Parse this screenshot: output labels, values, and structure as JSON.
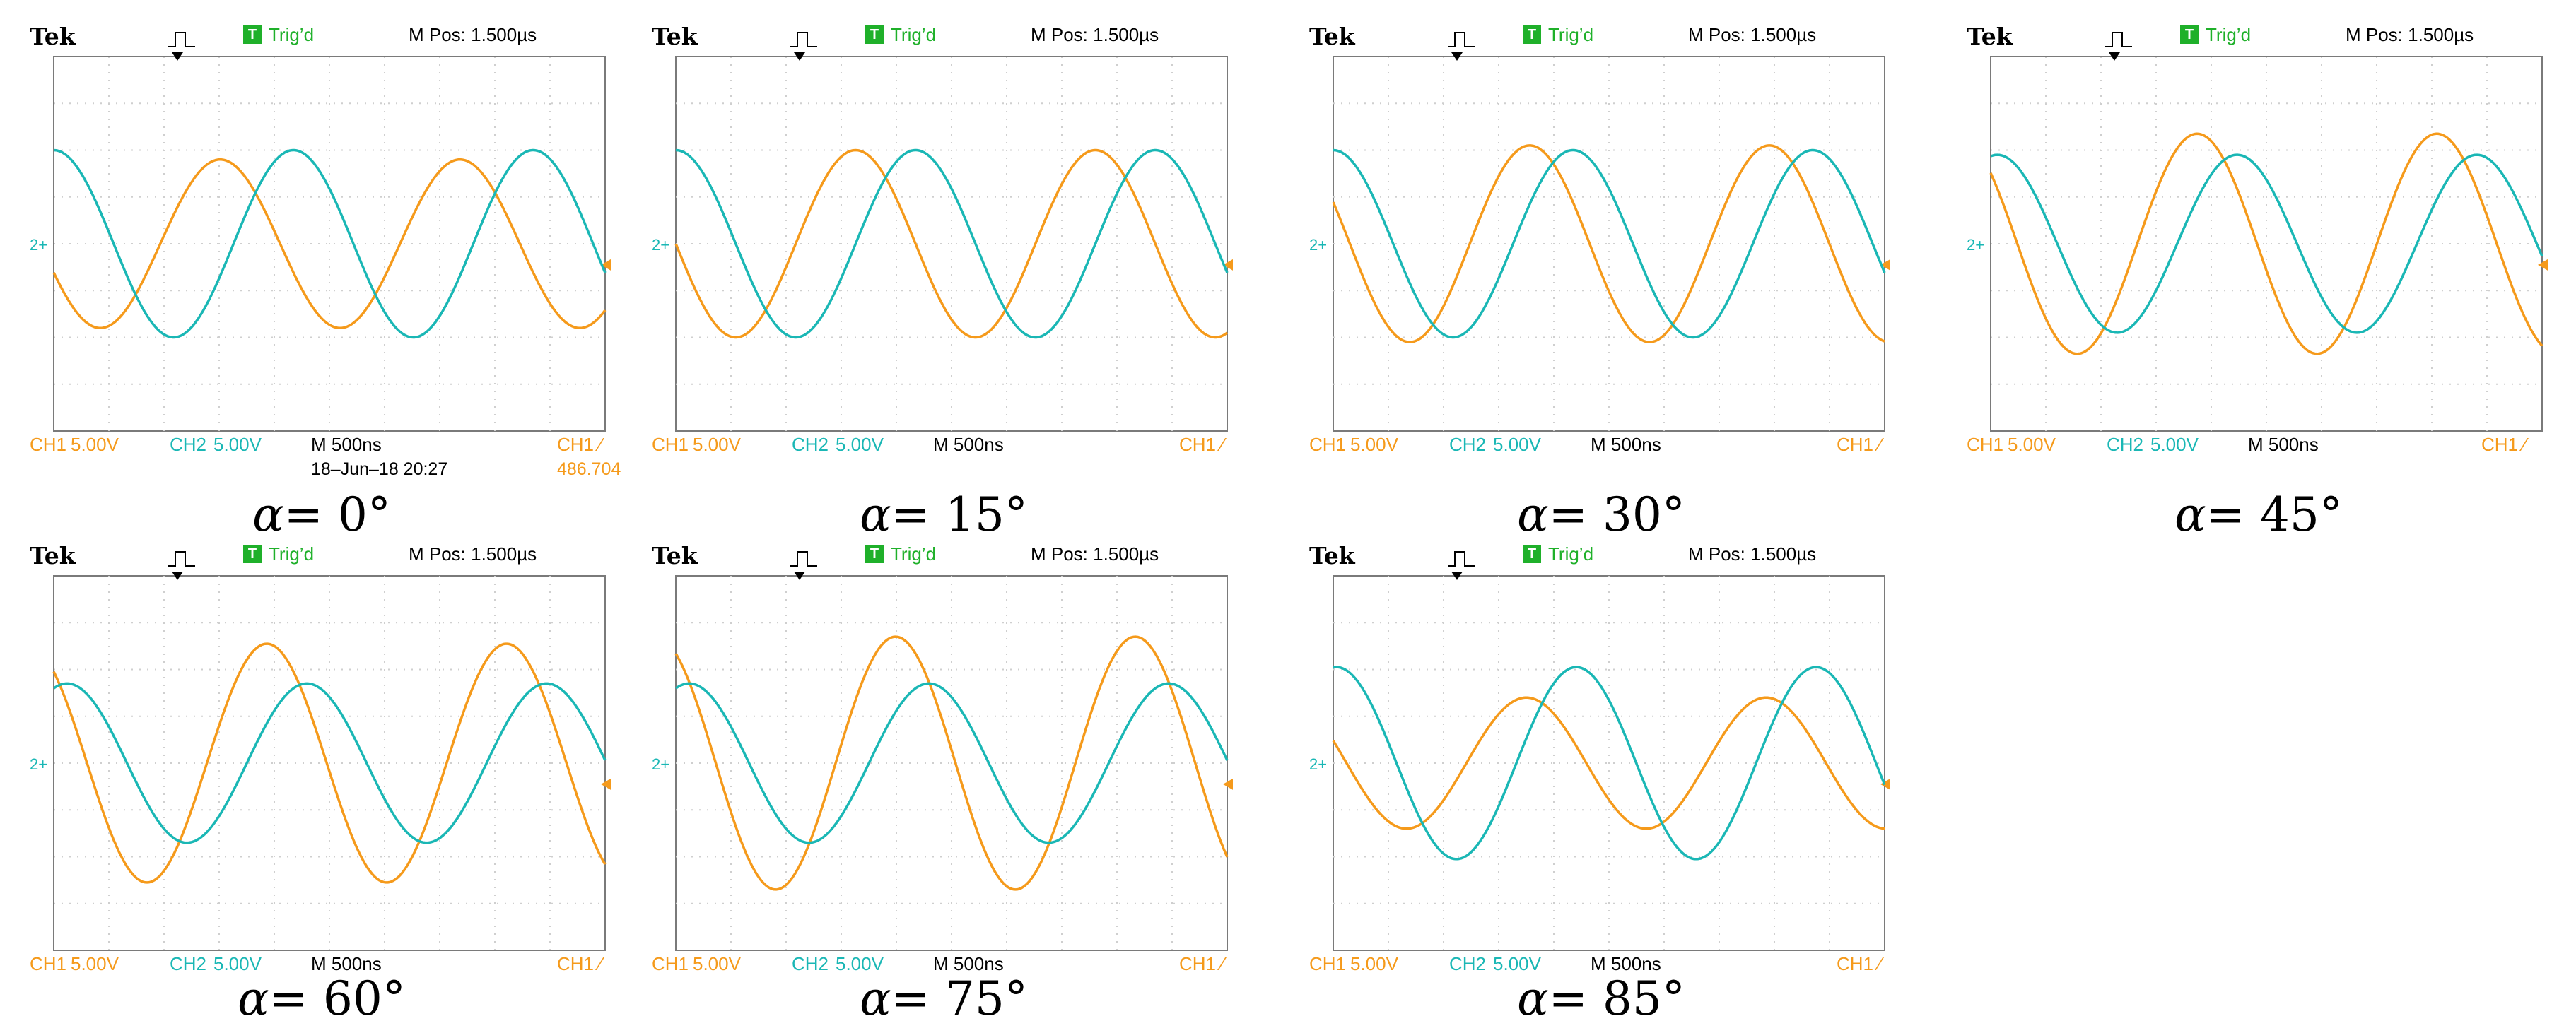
{
  "colors": {
    "ch1": "#f59a1b",
    "ch2": "#1ab7b5",
    "trig": "#1fb02a",
    "grid": "#cfcfcf"
  },
  "scope_common": {
    "brand": "Tek",
    "trig_box": "T",
    "trig_status": "Trig’d",
    "m_pos": "M Pos: 1.500µs",
    "ch1_label": "CH1",
    "ch1_scale": "5.00V",
    "ch2_label": "CH2",
    "ch2_scale": "5.00V",
    "timebase": "M 500ns",
    "ch1_trigger": "CH1 ⁄",
    "ch2_ground_marker": "2+",
    "trigger_icon": "trigger-pulse-icon"
  },
  "panels": [
    {
      "caption_symbol": "α",
      "caption_value": "= 0°",
      "footer_date": "18–Jun–18 20:27",
      "footer_freq": "486.704",
      "ch2_marker_dash": false
    },
    {
      "caption_symbol": "α",
      "caption_value": "= 15°",
      "ch2_marker_dash": true
    },
    {
      "caption_symbol": "α",
      "caption_value": "= 30°",
      "ch2_marker_dash": true
    },
    {
      "caption_symbol": "α",
      "caption_value": "= 45°",
      "ch2_marker_dash": false
    },
    {
      "caption_symbol": "α",
      "caption_value": "= 60°",
      "ch2_marker_dash": true
    },
    {
      "caption_symbol": "α",
      "caption_value": "= 75°",
      "ch2_marker_dash": false
    },
    {
      "caption_symbol": "α",
      "caption_value": "= 85°",
      "ch2_marker_dash": false
    }
  ],
  "chart_data": [
    {
      "type": "line",
      "alpha_deg": 0,
      "x_divisions": 10,
      "y_divisions": 8,
      "time_per_div_ns": 500,
      "series": [
        {
          "name": "CH1",
          "amplitude_div": 1.8,
          "phase_deg": 200,
          "cycles": 2.3
        },
        {
          "name": "CH2",
          "amplitude_div": 2.0,
          "phase_deg": 90,
          "cycles": 2.3
        }
      ]
    },
    {
      "type": "line",
      "alpha_deg": 15,
      "x_divisions": 10,
      "y_divisions": 8,
      "time_per_div_ns": 500,
      "series": [
        {
          "name": "CH1",
          "amplitude_div": 2.0,
          "phase_deg": 180,
          "cycles": 2.3
        },
        {
          "name": "CH2",
          "amplitude_div": 2.0,
          "phase_deg": 90,
          "cycles": 2.3
        }
      ]
    },
    {
      "type": "line",
      "alpha_deg": 30,
      "x_divisions": 10,
      "y_divisions": 8,
      "time_per_div_ns": 500,
      "series": [
        {
          "name": "CH1",
          "amplitude_div": 2.1,
          "phase_deg": 155,
          "cycles": 2.3
        },
        {
          "name": "CH2",
          "amplitude_div": 2.0,
          "phase_deg": 90,
          "cycles": 2.3
        }
      ]
    },
    {
      "type": "line",
      "alpha_deg": 45,
      "x_divisions": 10,
      "y_divisions": 8,
      "time_per_div_ns": 500,
      "series": [
        {
          "name": "CH1",
          "amplitude_div": 2.35,
          "phase_deg": 140,
          "cycles": 2.3
        },
        {
          "name": "CH2",
          "amplitude_div": 1.9,
          "phase_deg": 80,
          "cycles": 2.3
        }
      ]
    },
    {
      "type": "line",
      "alpha_deg": 60,
      "x_divisions": 10,
      "y_divisions": 8,
      "time_per_div_ns": 500,
      "series": [
        {
          "name": "CH1",
          "amplitude_div": 2.55,
          "phase_deg": 130,
          "cycles": 2.3
        },
        {
          "name": "CH2",
          "amplitude_div": 1.7,
          "phase_deg": 70,
          "cycles": 2.3
        }
      ]
    },
    {
      "type": "line",
      "alpha_deg": 75,
      "x_divisions": 10,
      "y_divisions": 8,
      "time_per_div_ns": 500,
      "series": [
        {
          "name": "CH1",
          "amplitude_div": 2.7,
          "phase_deg": 120,
          "cycles": 2.3
        },
        {
          "name": "CH2",
          "amplitude_div": 1.7,
          "phase_deg": 70,
          "cycles": 2.3
        }
      ]
    },
    {
      "type": "line",
      "alpha_deg": 85,
      "x_divisions": 10,
      "y_divisions": 8,
      "time_per_div_ns": 500,
      "series": [
        {
          "name": "CH1",
          "amplitude_div": 1.4,
          "phase_deg": 160,
          "cycles": 2.3
        },
        {
          "name": "CH2",
          "amplitude_div": 2.05,
          "phase_deg": 85,
          "cycles": 2.3
        }
      ]
    }
  ]
}
